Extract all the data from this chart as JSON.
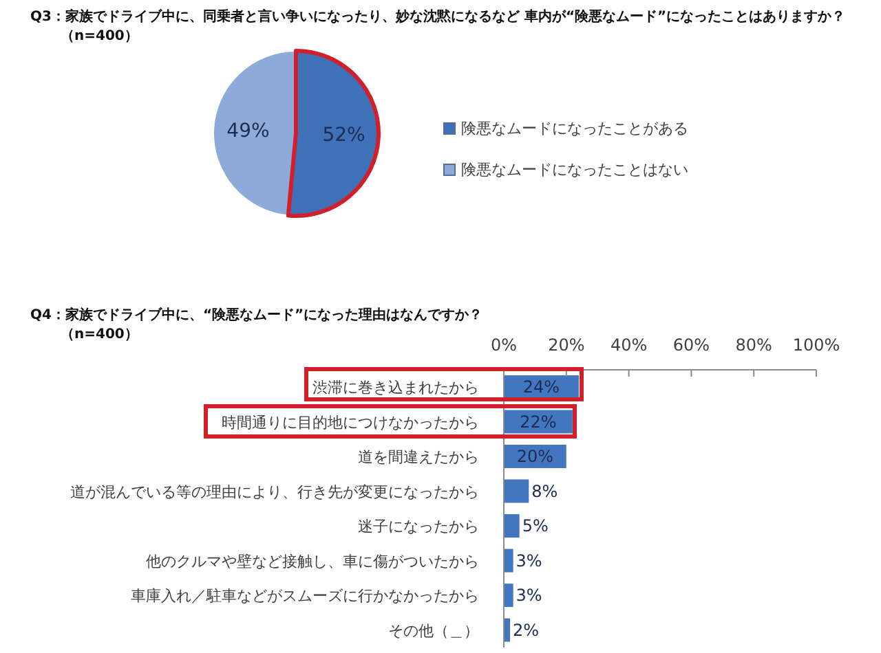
{
  "chart_data": [
    {
      "type": "pie",
      "title": "Q3：家族でドライブ中に、同乗者と言い争いになったり、妙な沈黙になるなど 車内が“険悪なムード”になったことはありますか？",
      "subtitle": "（n=400）",
      "categories": [
        "険悪なムードになったことがある",
        "険悪なムードになったことはない"
      ],
      "values": [
        52,
        49
      ],
      "colors": [
        "#3f71b8",
        "#8eaad8"
      ],
      "value_labels": [
        "52%",
        "49%"
      ],
      "legend": "right"
    },
    {
      "type": "bar",
      "orientation": "horizontal",
      "title": "Q4：家族でドライブ中に、“険悪なムード”になった理由はなんですか？",
      "subtitle": "（n=400）",
      "categories": [
        "渋滞に巻き込まれたから",
        "時間通りに目的地につけなかったから",
        "道を間違えたから",
        "道が混んでいる等の理由により、行き先が変更になったから",
        "迷子になったから",
        "他のクルマや壁など接触し、車に傷がついたから",
        "車庫入れ／駐車などがスムーズに行かなかったから",
        "その他（＿）"
      ],
      "values": [
        24,
        22,
        20,
        8,
        5,
        3,
        3,
        2
      ],
      "color": "#4277c0",
      "value_labels": [
        "24%",
        "22%",
        "20%",
        "8%",
        "5%",
        "3%",
        "3%",
        "2%"
      ],
      "xlim": [
        0,
        100
      ],
      "xticks": [
        {
          "value": 0,
          "label": "0%"
        },
        {
          "value": 20,
          "label": "20%"
        },
        {
          "value": 40,
          "label": "40%"
        },
        {
          "value": 60,
          "label": "60%"
        },
        {
          "value": 80,
          "label": "80%"
        },
        {
          "value": 100,
          "label": "100%"
        }
      ]
    }
  ]
}
